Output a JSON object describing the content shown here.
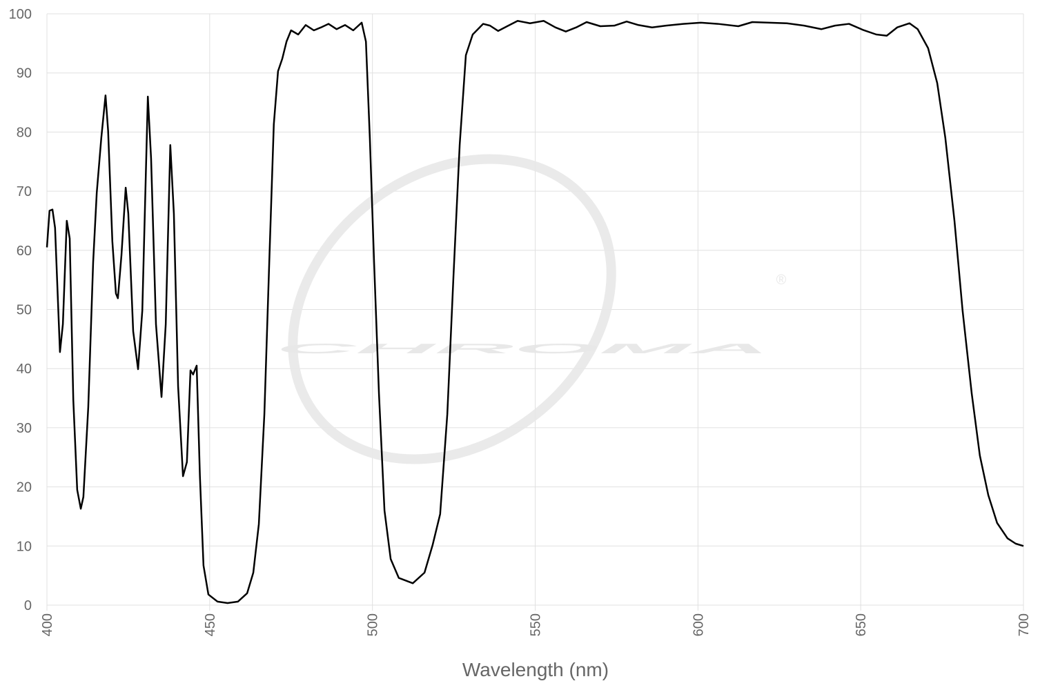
{
  "chart_data": {
    "type": "line",
    "x_label": "Wavelength (nm)",
    "watermark": "CHROMA",
    "watermark_symbol": "®",
    "xlim": [
      400,
      700
    ],
    "xticks": [
      400,
      450,
      500,
      550,
      600,
      650,
      700
    ],
    "ylim": [
      0,
      100
    ],
    "yticks": [
      0,
      10,
      20,
      30,
      40,
      50,
      60,
      70,
      80,
      90,
      100
    ],
    "grid": true,
    "color": "#000000",
    "x": [
      400,
      400.8,
      401.7,
      402.5,
      404,
      404.9,
      406.1,
      407,
      408.1,
      409.3,
      410.4,
      411.2,
      412.7,
      414.2,
      415.3,
      416.7,
      418,
      418.8,
      420.1,
      421.2,
      421.8,
      422.9,
      424.2,
      425,
      426.5,
      428,
      429.3,
      431,
      432,
      433.5,
      435.2,
      436.5,
      437.9,
      439,
      440.3,
      441.8,
      443,
      444.1,
      444.9,
      446,
      447,
      448.1,
      449.6,
      452.4,
      455.5,
      458.7,
      461.5,
      463.4,
      465.1,
      466.8,
      468.3,
      469.7,
      471,
      472.3,
      473.6,
      475,
      477.2,
      479.5,
      482,
      484.2,
      486.5,
      489,
      491.6,
      494.1,
      496.7,
      498,
      499.2,
      500.5,
      502,
      503.7,
      505.6,
      508.1,
      512.4,
      516,
      518.5,
      520.8,
      523,
      524.9,
      526.8,
      528.7,
      530.8,
      534,
      536.1,
      538.6,
      541.4,
      544.6,
      548.4,
      552.6,
      556.2,
      559.4,
      562.6,
      565.8,
      570,
      574.3,
      578.1,
      581.7,
      585.9,
      590.2,
      595.5,
      600.8,
      606.1,
      612.4,
      616.7,
      622,
      627.3,
      632.6,
      637.9,
      642.1,
      646.4,
      650.6,
      654.8,
      658,
      661.2,
      665,
      667.5,
      670.7,
      673.5,
      676,
      678.8,
      681.3,
      684.1,
      686.6,
      689.2,
      691.9,
      695.1,
      697.6,
      700
    ],
    "values": [
      60.5,
      66.7,
      66.9,
      63.8,
      42.8,
      47.5,
      65,
      62,
      34.7,
      19.5,
      16.3,
      18.3,
      33.5,
      58,
      69.7,
      79,
      86.2,
      80.2,
      61.5,
      52.7,
      51.9,
      59.2,
      70.6,
      66.2,
      46.3,
      39.9,
      49.8,
      86,
      75.5,
      47.5,
      35.2,
      47.5,
      77.8,
      66.2,
      37,
      21.8,
      24.2,
      39.7,
      39,
      40.5,
      21.8,
      6.7,
      1.8,
      0.6,
      0.35,
      0.6,
      2,
      5.5,
      13.7,
      32.3,
      58,
      81.3,
      90.3,
      92.4,
      95.3,
      97.2,
      96.5,
      98.1,
      97.2,
      97.7,
      98.3,
      97.4,
      98.1,
      97.2,
      98.5,
      95.3,
      79,
      58,
      35.8,
      16,
      7.8,
      4.6,
      3.7,
      5.5,
      10.2,
      15.4,
      32.3,
      55.7,
      77.8,
      93,
      96.5,
      98.3,
      98,
      97.1,
      97.9,
      98.8,
      98.4,
      98.8,
      97.7,
      97,
      97.7,
      98.6,
      97.9,
      98,
      98.7,
      98.1,
      97.7,
      98,
      98.3,
      98.5,
      98.3,
      97.9,
      98.6,
      98.5,
      98.4,
      98,
      97.4,
      98,
      98.3,
      97.3,
      96.5,
      96.3,
      97.7,
      98.4,
      97.4,
      94.2,
      88.3,
      79,
      65,
      49.8,
      35.8,
      25.3,
      18.6,
      13.9,
      11.3,
      10.4,
      10
    ]
  }
}
